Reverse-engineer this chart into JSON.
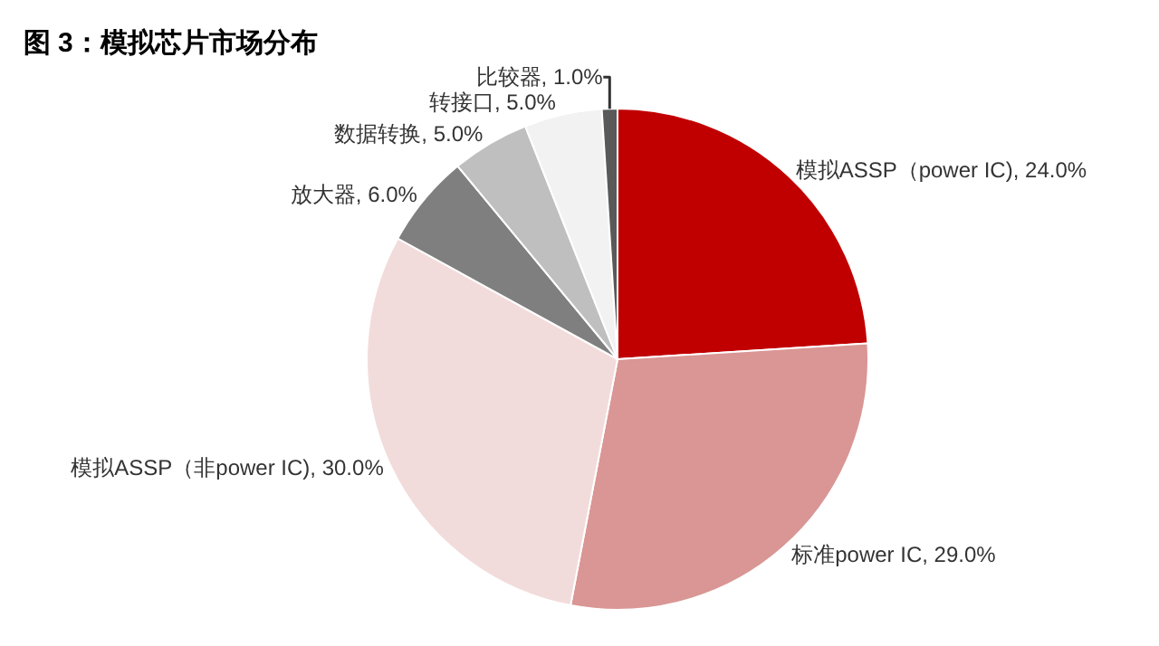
{
  "chart_data": {
    "type": "pie",
    "title": "图 3：模拟芯片市场分布",
    "categories": [
      "模拟ASSP（power IC)",
      "标准power IC",
      "模拟ASSP（非power IC)",
      "放大器",
      "数据转换",
      "转接口",
      "比较器"
    ],
    "values": [
      24,
      29,
      30,
      6,
      5,
      5,
      1
    ],
    "value_labels": [
      "24.0%",
      "29.0%",
      "30.0%",
      "6.0%",
      "5.0%",
      "5.0%",
      "1.0%"
    ],
    "colors": [
      "#c00000",
      "#d99694",
      "#f2dcdb",
      "#7f7f7f",
      "#bfbfbf",
      "#f2f2f2",
      "#595959"
    ],
    "legend": false
  }
}
